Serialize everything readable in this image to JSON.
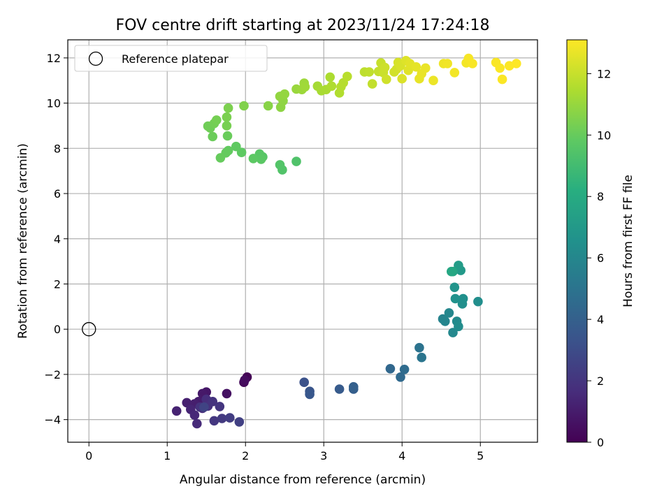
{
  "chart_data": {
    "type": "scatter",
    "title": "FOV centre drift starting at 2023/11/24 17:24:18",
    "xlabel": "Angular distance from reference (arcmin)",
    "ylabel": "Rotation from reference (arcmin)",
    "xlim": [
      -0.27,
      5.73
    ],
    "ylim": [
      -5.0,
      12.8
    ],
    "xticks": [
      0,
      1,
      2,
      3,
      4,
      5
    ],
    "yticks": [
      -4,
      -2,
      0,
      2,
      4,
      6,
      8,
      10,
      12
    ],
    "grid": true,
    "colormap": "viridis",
    "colorbar": {
      "label": "Hours from first FF file",
      "range": [
        0,
        13.1
      ],
      "ticks": [
        0,
        2,
        4,
        6,
        8,
        10,
        12
      ]
    },
    "legend": {
      "placement": "top-left",
      "label": "Reference platepar"
    },
    "reference_point": {
      "x": 0,
      "y": 0
    },
    "points": [
      [
        2.02,
        -2.12,
        0.05
      ],
      [
        1.98,
        -2.35,
        0.25
      ],
      [
        1.99,
        -2.25,
        0.4
      ],
      [
        1.76,
        -2.85,
        0.6
      ],
      [
        1.5,
        -2.78,
        0.8
      ],
      [
        1.45,
        -2.85,
        0.9
      ],
      [
        1.4,
        -3.2,
        1.0
      ],
      [
        1.35,
        -3.3,
        1.1
      ],
      [
        1.25,
        -3.25,
        1.15
      ],
      [
        1.12,
        -3.62,
        1.25
      ],
      [
        1.3,
        -3.55,
        1.35
      ],
      [
        1.35,
        -3.8,
        1.45
      ],
      [
        1.38,
        -4.18,
        1.55
      ],
      [
        1.45,
        -3.5,
        1.6
      ],
      [
        1.5,
        -3.1,
        1.7
      ],
      [
        1.52,
        -3.4,
        1.8
      ],
      [
        1.42,
        -3.45,
        1.85
      ],
      [
        1.58,
        -3.2,
        1.9
      ],
      [
        1.67,
        -3.42,
        2.0
      ],
      [
        1.6,
        -4.05,
        2.1
      ],
      [
        1.7,
        -3.95,
        2.2
      ],
      [
        1.8,
        -3.92,
        2.35
      ],
      [
        1.92,
        -4.1,
        2.5
      ],
      [
        1.47,
        -3.45,
        2.6
      ],
      [
        2.75,
        -2.35,
        3.3
      ],
      [
        2.82,
        -2.75,
        3.45
      ],
      [
        2.82,
        -2.88,
        3.55
      ],
      [
        3.2,
        -2.65,
        3.75
      ],
      [
        3.38,
        -2.65,
        3.9
      ],
      [
        3.38,
        -2.55,
        4.0
      ],
      [
        3.85,
        -1.75,
        4.35
      ],
      [
        3.98,
        -2.12,
        4.45
      ],
      [
        4.03,
        -1.78,
        4.55
      ],
      [
        4.22,
        -0.82,
        4.95
      ],
      [
        4.25,
        -1.25,
        5.05
      ],
      [
        4.52,
        0.45,
        5.8
      ],
      [
        4.55,
        0.35,
        5.9
      ],
      [
        4.6,
        0.72,
        6.0
      ],
      [
        4.65,
        -0.15,
        6.1
      ],
      [
        4.7,
        0.35,
        6.2
      ],
      [
        4.72,
        0.12,
        6.3
      ],
      [
        4.97,
        1.22,
        6.4
      ],
      [
        4.77,
        1.12,
        6.45
      ],
      [
        4.78,
        1.35,
        6.5
      ],
      [
        4.68,
        1.35,
        6.6
      ],
      [
        4.67,
        1.85,
        6.7
      ],
      [
        4.75,
        2.6,
        7.0
      ],
      [
        4.72,
        2.82,
        7.15
      ],
      [
        4.65,
        2.55,
        7.6
      ],
      [
        4.63,
        2.55,
        7.8
      ],
      [
        2.65,
        7.42,
        9.4
      ],
      [
        2.47,
        7.05,
        9.45
      ],
      [
        2.44,
        7.27,
        9.5
      ],
      [
        2.22,
        7.62,
        9.6
      ],
      [
        2.18,
        7.75,
        9.65
      ],
      [
        2.2,
        7.52,
        9.7
      ],
      [
        2.1,
        7.55,
        9.75
      ],
      [
        1.95,
        7.82,
        9.8
      ],
      [
        1.88,
        8.08,
        9.85
      ],
      [
        1.78,
        7.9,
        9.9
      ],
      [
        1.75,
        7.8,
        9.95
      ],
      [
        1.68,
        7.58,
        10.0
      ],
      [
        1.77,
        8.55,
        10.05
      ],
      [
        1.58,
        8.52,
        10.1
      ],
      [
        1.55,
        8.9,
        10.15
      ],
      [
        1.52,
        8.98,
        10.2
      ],
      [
        1.6,
        9.1,
        10.25
      ],
      [
        1.63,
        9.25,
        10.3
      ],
      [
        1.76,
        9.0,
        10.35
      ],
      [
        1.76,
        9.38,
        10.4
      ],
      [
        1.78,
        9.78,
        10.45
      ],
      [
        1.98,
        9.88,
        10.55
      ],
      [
        2.29,
        9.88,
        10.7
      ],
      [
        2.45,
        9.82,
        10.8
      ],
      [
        2.48,
        10.1,
        10.85
      ],
      [
        2.44,
        10.3,
        10.9
      ],
      [
        2.5,
        10.4,
        10.95
      ],
      [
        2.65,
        10.62,
        11.05
      ],
      [
        2.72,
        10.6,
        11.1
      ],
      [
        2.75,
        10.88,
        11.15
      ],
      [
        2.76,
        10.72,
        11.2
      ],
      [
        2.92,
        10.75,
        11.3
      ],
      [
        2.97,
        10.55,
        11.35
      ],
      [
        3.03,
        10.6,
        11.4
      ],
      [
        3.08,
        11.15,
        11.45
      ],
      [
        3.1,
        10.75,
        11.5
      ],
      [
        3.2,
        10.45,
        11.55
      ],
      [
        3.22,
        10.72,
        11.6
      ],
      [
        3.25,
        10.9,
        11.65
      ],
      [
        3.3,
        11.18,
        11.7
      ],
      [
        3.52,
        11.38,
        11.8
      ],
      [
        3.58,
        11.38,
        11.85
      ],
      [
        3.62,
        10.85,
        11.9
      ],
      [
        3.7,
        11.4,
        11.95
      ],
      [
        3.73,
        11.78,
        12.0
      ],
      [
        3.76,
        11.35,
        12.05
      ],
      [
        3.78,
        11.58,
        12.1
      ],
      [
        3.8,
        11.05,
        12.15
      ],
      [
        3.9,
        11.38,
        12.2
      ],
      [
        3.93,
        11.5,
        12.25
      ],
      [
        3.95,
        11.8,
        12.3
      ],
      [
        3.98,
        11.65,
        12.35
      ],
      [
        4.0,
        11.08,
        12.4
      ],
      [
        4.05,
        11.88,
        12.45
      ],
      [
        4.08,
        11.45,
        12.5
      ],
      [
        4.1,
        11.75,
        12.55
      ],
      [
        4.18,
        11.6,
        12.6
      ],
      [
        4.22,
        11.08,
        12.65
      ],
      [
        4.25,
        11.3,
        12.7
      ],
      [
        4.3,
        11.55,
        12.72
      ],
      [
        4.4,
        11.0,
        12.75
      ],
      [
        4.53,
        11.75,
        12.8
      ],
      [
        4.58,
        11.75,
        12.85
      ],
      [
        4.67,
        11.35,
        12.88
      ],
      [
        4.82,
        11.78,
        12.9
      ],
      [
        4.85,
        11.98,
        12.95
      ],
      [
        4.9,
        11.75,
        13.0
      ],
      [
        5.2,
        11.8,
        13.02
      ],
      [
        5.25,
        11.55,
        13.04
      ],
      [
        5.28,
        11.05,
        13.06
      ],
      [
        5.37,
        11.65,
        13.08
      ],
      [
        5.46,
        11.75,
        13.1
      ]
    ]
  }
}
